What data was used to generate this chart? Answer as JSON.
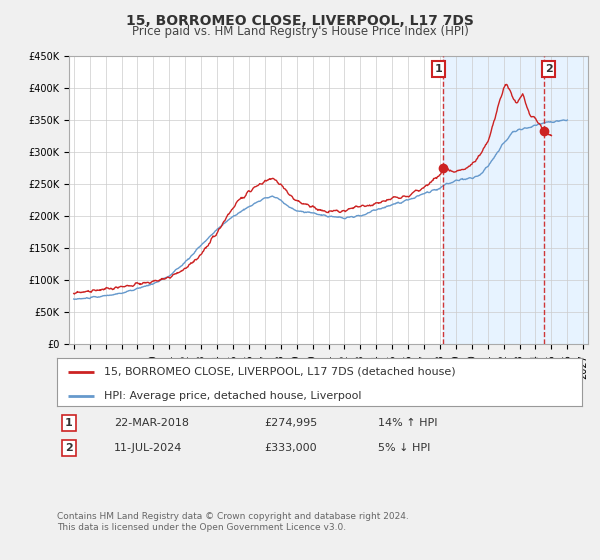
{
  "title": "15, BORROMEO CLOSE, LIVERPOOL, L17 7DS",
  "subtitle": "Price paid vs. HM Land Registry's House Price Index (HPI)",
  "ylim": [
    0,
    450000
  ],
  "yticks": [
    0,
    50000,
    100000,
    150000,
    200000,
    250000,
    300000,
    350000,
    400000,
    450000
  ],
  "ytick_labels": [
    "£0",
    "£50K",
    "£100K",
    "£150K",
    "£200K",
    "£250K",
    "£300K",
    "£350K",
    "£400K",
    "£450K"
  ],
  "xlim_start": 1994.7,
  "xlim_end": 2027.3,
  "xticks": [
    1995,
    1996,
    1997,
    1998,
    1999,
    2000,
    2001,
    2002,
    2003,
    2004,
    2005,
    2006,
    2007,
    2008,
    2009,
    2010,
    2011,
    2012,
    2013,
    2014,
    2015,
    2016,
    2017,
    2018,
    2019,
    2020,
    2021,
    2022,
    2023,
    2024,
    2025,
    2026,
    2027
  ],
  "fig_bg_color": "#f0f0f0",
  "plot_bg_color": "#ffffff",
  "grid_color": "#cccccc",
  "red_line_color": "#cc2222",
  "blue_line_color": "#6699cc",
  "blue_shade_color": "#ddeeff",
  "vline_color": "#cc2222",
  "marker1_date": 2018.22,
  "marker1_value": 274995,
  "marker2_date": 2024.53,
  "marker2_value": 333000,
  "vline1_date": 2018.22,
  "vline2_date": 2024.53,
  "legend_label_red": "15, BORROMEO CLOSE, LIVERPOOL, L17 7DS (detached house)",
  "legend_label_blue": "HPI: Average price, detached house, Liverpool",
  "table_row1": [
    "1",
    "22-MAR-2018",
    "£274,995",
    "14% ↑ HPI"
  ],
  "table_row2": [
    "2",
    "11-JUL-2024",
    "£333,000",
    "5% ↓ HPI"
  ],
  "footer": "Contains HM Land Registry data © Crown copyright and database right 2024.\nThis data is licensed under the Open Government Licence v3.0.",
  "title_fontsize": 10,
  "subtitle_fontsize": 8.5,
  "tick_fontsize": 7,
  "legend_fontsize": 8,
  "table_fontsize": 8,
  "footer_fontsize": 6.5
}
